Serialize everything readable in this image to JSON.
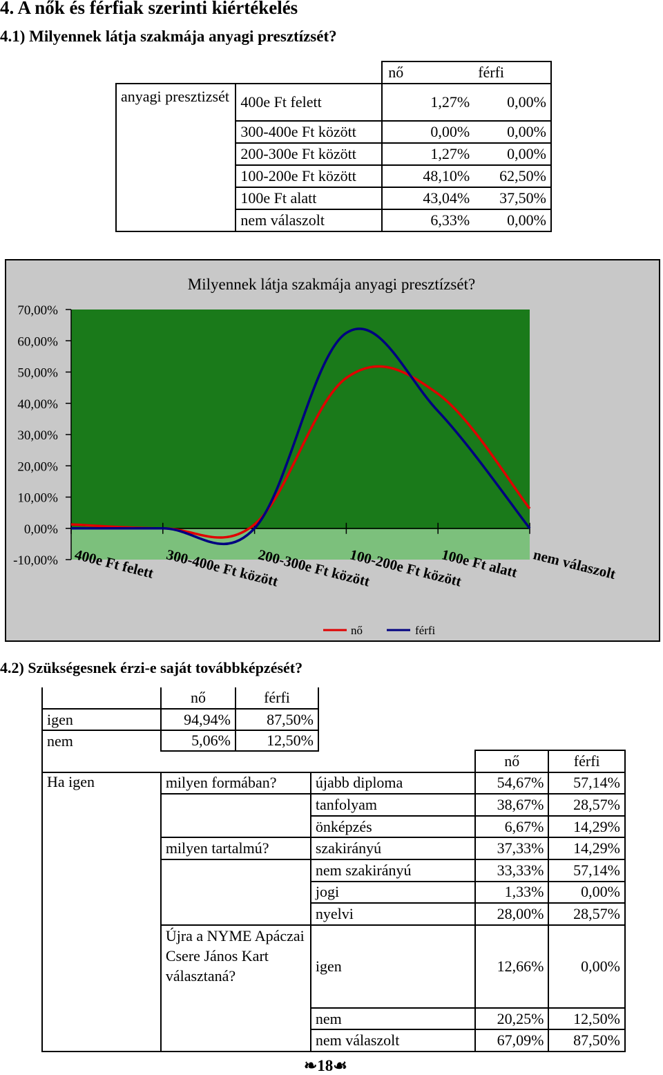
{
  "section_title": "4. A nők és férfiak szerinti kiértékelés",
  "q1": {
    "title": "4.1) Milyennek látja szakmája anyagi presztízsét?",
    "headers": [
      "nő",
      "férfi"
    ],
    "row_label": "anyagi presztizsét",
    "rows": [
      {
        "label": "400e Ft felett",
        "no": "1,27%",
        "ferfi": "0,00%"
      },
      {
        "label": "300-400e Ft között",
        "no": "0,00%",
        "ferfi": "0,00%"
      },
      {
        "label": "200-300e Ft között",
        "no": "1,27%",
        "ferfi": "0,00%"
      },
      {
        "label": "100-200e Ft között",
        "no": "48,10%",
        "ferfi": "62,50%"
      },
      {
        "label": "100e Ft alatt",
        "no": "43,04%",
        "ferfi": "37,50%"
      },
      {
        "label": "nem válaszolt",
        "no": "6,33%",
        "ferfi": "0,00%"
      }
    ]
  },
  "chart_data": {
    "type": "line",
    "title": "Milyennek látja szakmája anyagi presztízsét?",
    "categories": [
      "400e Ft felett",
      "300-400e Ft között",
      "200-300e Ft között",
      "100-200e Ft között",
      "100e Ft alatt",
      "nem válaszolt"
    ],
    "series": [
      {
        "name": "nő",
        "color": "#e00000",
        "values": [
          1.27,
          0.0,
          1.27,
          48.1,
          43.04,
          6.33
        ]
      },
      {
        "name": "férfi",
        "color": "#000080",
        "values": [
          0.0,
          0.0,
          0.0,
          62.5,
          37.5,
          0.0
        ]
      }
    ],
    "ylim": [
      -10,
      70
    ],
    "yticks": [
      "70,00%",
      "60,00%",
      "50,00%",
      "40,00%",
      "30,00%",
      "20,00%",
      "10,00%",
      "0,00%",
      "-10,00%"
    ],
    "smooth": true,
    "plot_background": "#1a7a1a",
    "legend_position": "bottom"
  },
  "q2": {
    "title": "4.2) Szükségesnek érzi-e saját továbbképzését?",
    "headers": [
      "nő",
      "férfi"
    ],
    "rows": [
      {
        "label": "igen",
        "no": "94,94%",
        "ferfi": "87,50%"
      },
      {
        "label": "nem",
        "no": "5,06%",
        "ferfi": "12,50%"
      }
    ]
  },
  "q3": {
    "headers": [
      "nő",
      "férfi"
    ],
    "col1": "Ha igen",
    "groups": [
      {
        "question": "milyen formában?",
        "rows": [
          {
            "label": "újabb diploma",
            "no": "54,67%",
            "ferfi": "57,14%"
          },
          {
            "label": "tanfolyam",
            "no": "38,67%",
            "ferfi": "28,57%"
          },
          {
            "label": "önképzés",
            "no": "6,67%",
            "ferfi": "14,29%"
          }
        ]
      },
      {
        "question": "milyen tartalmú?",
        "rows": [
          {
            "label": "szakirányú",
            "no": "37,33%",
            "ferfi": "14,29%"
          },
          {
            "label": "nem szakirányú",
            "no": "33,33%",
            "ferfi": "57,14%"
          },
          {
            "label": "jogi",
            "no": "1,33%",
            "ferfi": "0,00%"
          },
          {
            "label": "nyelvi",
            "no": "28,00%",
            "ferfi": "28,57%"
          }
        ]
      },
      {
        "question": "Újra a NYME Apáczai Csere János Kart választaná?",
        "rows": [
          {
            "label": "igen",
            "no": "12,66%",
            "ferfi": "0,00%"
          },
          {
            "label": "nem",
            "no": "20,25%",
            "ferfi": "12,50%"
          },
          {
            "label": "nem válaszolt",
            "no": "67,09%",
            "ferfi": "87,50%"
          }
        ]
      }
    ]
  },
  "page_number": "18"
}
